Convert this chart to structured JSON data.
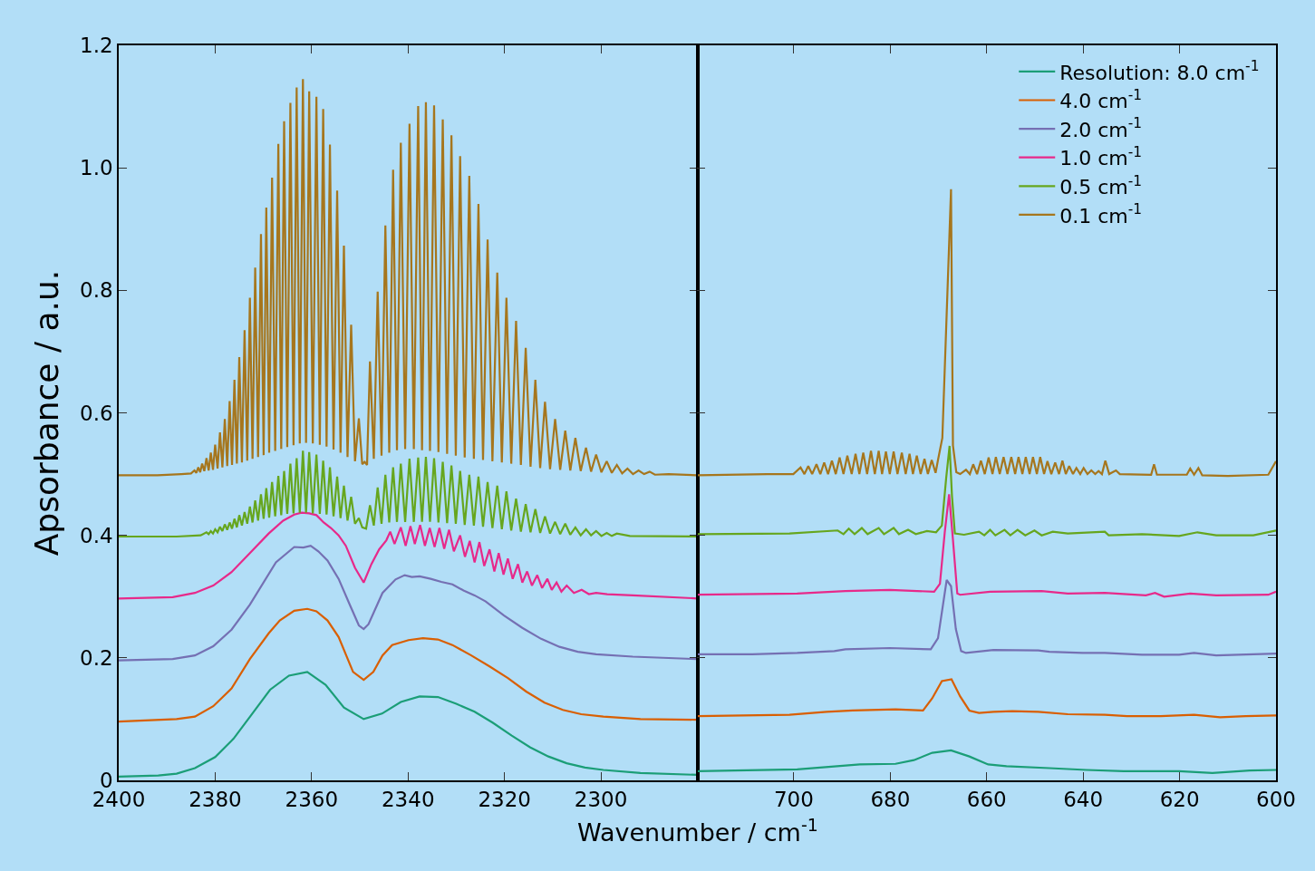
{
  "chart_data": [
    {
      "type": "line",
      "xlabel": "Wavenumber / cm$^{-1}$",
      "ylabel": "Apsorbance / a.u.",
      "xlim": [
        2400,
        2280
      ],
      "xticks": [
        2400,
        2380,
        2360,
        2340,
        2320,
        2300
      ],
      "ylim": [
        0,
        1.2
      ],
      "yticks": [
        0,
        0.2,
        0.4,
        0.6,
        0.8,
        {
          "value": 1.0,
          "label": "1.0"
        },
        1.2
      ],
      "grid": false,
      "legend": false,
      "line_style": "solid",
      "marker": "none",
      "series": [
        {
          "color": "#1b9e77",
          "x": [
            2400,
            2391.8,
            2388.0,
            2384.2,
            2380.0,
            2376.2,
            2372.3,
            2368.6,
            2364.7,
            2360.9,
            2357.1,
            2353.3,
            2349.2,
            2345.4,
            2341.5,
            2337.6,
            2333.8,
            2330.0,
            2326.2,
            2322.4,
            2318.5,
            2314.7,
            2310.9,
            2307.1,
            2303.3,
            2299.5,
            2291.8,
            2280
          ],
          "values": [
            0.006,
            0.008,
            0.011,
            0.02,
            0.038,
            0.068,
            0.109,
            0.148,
            0.171,
            0.177,
            0.156,
            0.119,
            0.1,
            0.109,
            0.128,
            0.137,
            0.136,
            0.125,
            0.112,
            0.094,
            0.073,
            0.054,
            0.039,
            0.028,
            0.021,
            0.017,
            0.012,
            0.009
          ]
        },
        {
          "color": "#d95f02",
          "x": [
            2400,
            2388.0,
            2384.2,
            2380.4,
            2376.6,
            2372.8,
            2368.9,
            2366.6,
            2363.6,
            2360.9,
            2359.0,
            2356.7,
            2354.4,
            2351.4,
            2349.2,
            2347.2,
            2345.3,
            2343.3,
            2339.9,
            2336.9,
            2333.8,
            2330.8,
            2326.9,
            2323.1,
            2319.3,
            2315.5,
            2311.7,
            2307.9,
            2304.1,
            2299.5,
            2291.8,
            2280
          ],
          "values": [
            0.096,
            0.1,
            0.104,
            0.121,
            0.15,
            0.198,
            0.24,
            0.261,
            0.277,
            0.28,
            0.276,
            0.261,
            0.234,
            0.177,
            0.164,
            0.177,
            0.204,
            0.221,
            0.229,
            0.232,
            0.23,
            0.221,
            0.204,
            0.186,
            0.167,
            0.145,
            0.127,
            0.115,
            0.108,
            0.104,
            0.1,
            0.099
          ]
        },
        {
          "color": "#7570b3",
          "x": [
            2400,
            2388.8,
            2384.2,
            2380.4,
            2376.6,
            2372.8,
            2367.4,
            2363.6,
            2361.7,
            2360.2,
            2358.6,
            2356.7,
            2354.4,
            2352.1,
            2350.2,
            2349.2,
            2348.2,
            2345.3,
            2342.6,
            2340.7,
            2339.2,
            2337.6,
            2335.3,
            2333.1,
            2330.8,
            2328.5,
            2326.2,
            2323.9,
            2320.1,
            2316.3,
            2312.4,
            2308.6,
            2304.8,
            2301.0,
            2293.4,
            2280
          ],
          "values": [
            0.196,
            0.198,
            0.204,
            0.219,
            0.246,
            0.287,
            0.356,
            0.381,
            0.38,
            0.383,
            0.374,
            0.359,
            0.329,
            0.287,
            0.253,
            0.247,
            0.255,
            0.306,
            0.328,
            0.335,
            0.332,
            0.333,
            0.329,
            0.324,
            0.32,
            0.31,
            0.302,
            0.292,
            0.269,
            0.249,
            0.231,
            0.218,
            0.21,
            0.206,
            0.202,
            0.198
          ]
        },
        {
          "color": "#e7298a",
          "x": [
            2400,
            2388.8,
            2384.2,
            2380.4,
            2376.6,
            2372.8,
            2368.9,
            2365.9,
            2363.6,
            2362.1,
            2360.5,
            2359.0,
            2357.5,
            2356.0,
            2354.4,
            2352.9,
            2351.0,
            2349.2,
            2347.6,
            2346.0,
            2344.5,
            2343.7,
            2342.8,
            2341.5,
            2340.5,
            2339.5,
            2338.6,
            2337.5,
            2336.5,
            2335.5,
            2334.5,
            2333.5,
            2332.5,
            2331.5,
            2330.5,
            2329.2,
            2328.2,
            2327.2,
            2326.2,
            2325.2,
            2324.2,
            2323.1,
            2322.1,
            2321.2,
            2320.2,
            2319.3,
            2318.3,
            2317.2,
            2316.3,
            2315.3,
            2314.3,
            2313.2,
            2312.2,
            2311.1,
            2310.2,
            2309.2,
            2308.2,
            2307.1,
            2305.6,
            2304.0,
            2302.5,
            2301.0,
            2298.7,
            2293.4,
            2280
          ],
          "values": [
            0.297,
            0.299,
            0.306,
            0.318,
            0.34,
            0.371,
            0.403,
            0.424,
            0.434,
            0.437,
            0.436,
            0.433,
            0.421,
            0.412,
            0.4,
            0.383,
            0.347,
            0.323,
            0.353,
            0.377,
            0.392,
            0.406,
            0.386,
            0.413,
            0.383,
            0.415,
            0.386,
            0.417,
            0.383,
            0.412,
            0.381,
            0.412,
            0.378,
            0.409,
            0.374,
            0.4,
            0.365,
            0.391,
            0.356,
            0.389,
            0.35,
            0.377,
            0.341,
            0.371,
            0.336,
            0.362,
            0.329,
            0.353,
            0.323,
            0.341,
            0.318,
            0.335,
            0.314,
            0.329,
            0.311,
            0.323,
            0.308,
            0.318,
            0.306,
            0.311,
            0.304,
            0.306,
            0.304,
            0.302,
            0.297
          ]
        },
        {
          "color": "#66a61e",
          "x": [
            2400,
            2388,
            2383,
            2381.8,
            2381.35,
            2380.9,
            2380.45,
            2380.0,
            2379.5,
            2379.0,
            2378.5,
            2378.0,
            2377.5,
            2377.0,
            2376.5,
            2376.0,
            2375.5,
            2375.0,
            2374.45,
            2373.9,
            2373.35,
            2372.8,
            2372.25,
            2371.7,
            2371.1,
            2370.5,
            2369.95,
            2369.4,
            2368.8,
            2368.2,
            2367.55,
            2366.9,
            2366.3,
            2365.7,
            2365.05,
            2364.4,
            2363.75,
            2363.1,
            2362.45,
            2361.8,
            2361.15,
            2360.5,
            2359.75,
            2359.0,
            2358.3,
            2357.6,
            2356.9,
            2356.2,
            2355.45,
            2354.7,
            2354.0,
            2353.3,
            2352.55,
            2351.8,
            2351.0,
            2350.2,
            2349.5,
            2348.7,
            2347.9,
            2347.1,
            2346.3,
            2345.5,
            2344.7,
            2343.9,
            2343.1,
            2342.3,
            2341.5,
            2340.6,
            2339.7,
            2338.8,
            2337.9,
            2337.1,
            2336.3,
            2335.45,
            2334.6,
            2333.7,
            2332.8,
            2331.9,
            2331.0,
            2330.1,
            2329.2,
            2328.25,
            2327.3,
            2326.35,
            2325.4,
            2324.45,
            2323.5,
            2322.5,
            2321.5,
            2320.55,
            2319.6,
            2318.6,
            2317.6,
            2316.6,
            2315.6,
            2314.6,
            2313.6,
            2312.6,
            2311.6,
            2310.55,
            2309.5,
            2308.45,
            2307.4,
            2306.35,
            2305.3,
            2304.2,
            2303.1,
            2302.05,
            2301.0,
            2299.9,
            2298.8,
            2297.75,
            2296.7,
            2294,
            2280
          ],
          "values": [
            0.398,
            0.398,
            0.4,
            0.405,
            0.402,
            0.407,
            0.403,
            0.41,
            0.405,
            0.414,
            0.407,
            0.418,
            0.409,
            0.421,
            0.411,
            0.427,
            0.413,
            0.433,
            0.416,
            0.438,
            0.419,
            0.447,
            0.421,
            0.457,
            0.424,
            0.467,
            0.427,
            0.477,
            0.429,
            0.487,
            0.431,
            0.497,
            0.433,
            0.505,
            0.435,
            0.517,
            0.436,
            0.526,
            0.437,
            0.538,
            0.437,
            0.536,
            0.436,
            0.532,
            0.435,
            0.522,
            0.434,
            0.511,
            0.431,
            0.496,
            0.428,
            0.481,
            0.424,
            0.463,
            0.419,
            0.428,
            0.413,
            0.411,
            0.449,
            0.416,
            0.478,
            0.419,
            0.499,
            0.421,
            0.511,
            0.422,
            0.517,
            0.422,
            0.525,
            0.422,
            0.527,
            0.422,
            0.528,
            0.422,
            0.526,
            0.421,
            0.52,
            0.42,
            0.514,
            0.419,
            0.505,
            0.417,
            0.499,
            0.416,
            0.496,
            0.414,
            0.487,
            0.412,
            0.481,
            0.41,
            0.472,
            0.408,
            0.46,
            0.406,
            0.451,
            0.405,
            0.443,
            0.404,
            0.431,
            0.403,
            0.422,
            0.402,
            0.419,
            0.401,
            0.413,
            0.4,
            0.41,
            0.4,
            0.407,
            0.399,
            0.404,
            0.399,
            0.403,
            0.399,
            0.398
          ]
        },
        {
          "color": "#a6761d",
          "x": [
            2400,
            2392,
            2387,
            2385,
            2384.3,
            2383.9,
            2383.5,
            2383.1,
            2382.7,
            2382.25,
            2381.8,
            2381.35,
            2380.9,
            2380.45,
            2380.0,
            2379.5,
            2379.0,
            2378.5,
            2378.0,
            2377.5,
            2377.0,
            2376.5,
            2376.0,
            2375.5,
            2375.0,
            2374.45,
            2373.9,
            2373.35,
            2372.8,
            2372.25,
            2371.7,
            2371.1,
            2370.5,
            2369.95,
            2369.4,
            2368.8,
            2368.2,
            2367.55,
            2366.9,
            2366.3,
            2365.7,
            2365.05,
            2364.4,
            2363.75,
            2363.1,
            2362.45,
            2361.8,
            2361.15,
            2360.5,
            2359.75,
            2359.0,
            2358.3,
            2357.6,
            2356.9,
            2356.2,
            2355.45,
            2354.7,
            2354.0,
            2353.3,
            2352.55,
            2351.8,
            2351.0,
            2350.2,
            2349.5,
            2349.0,
            2348.5,
            2347.9,
            2347.1,
            2346.3,
            2345.5,
            2344.7,
            2343.9,
            2343.1,
            2342.3,
            2341.5,
            2340.6,
            2339.7,
            2338.8,
            2337.9,
            2337.1,
            2336.3,
            2335.45,
            2334.6,
            2333.7,
            2332.8,
            2331.9,
            2331.0,
            2330.1,
            2329.2,
            2328.25,
            2327.3,
            2326.35,
            2325.4,
            2324.45,
            2323.5,
            2322.5,
            2321.5,
            2320.55,
            2319.6,
            2318.6,
            2317.6,
            2316.6,
            2315.6,
            2314.6,
            2313.6,
            2312.6,
            2311.6,
            2310.55,
            2309.5,
            2308.45,
            2307.4,
            2306.35,
            2305.3,
            2304.2,
            2303.1,
            2302.05,
            2301.0,
            2299.9,
            2298.8,
            2297.75,
            2296.7,
            2295.6,
            2294.5,
            2293.35,
            2292.2,
            2291.05,
            2289.9,
            2288.8,
            2286,
            2280
          ],
          "values": [
            0.498,
            0.498,
            0.5,
            0.501,
            0.506,
            0.502,
            0.511,
            0.503,
            0.517,
            0.505,
            0.526,
            0.506,
            0.535,
            0.507,
            0.548,
            0.509,
            0.568,
            0.511,
            0.59,
            0.513,
            0.619,
            0.515,
            0.654,
            0.517,
            0.691,
            0.519,
            0.735,
            0.522,
            0.788,
            0.525,
            0.837,
            0.528,
            0.892,
            0.531,
            0.935,
            0.535,
            0.984,
            0.538,
            1.039,
            0.541,
            1.076,
            0.544,
            1.106,
            0.547,
            1.131,
            0.55,
            1.145,
            0.551,
            1.125,
            0.55,
            1.116,
            0.548,
            1.096,
            0.545,
            1.038,
            0.54,
            0.963,
            0.535,
            0.873,
            0.528,
            0.744,
            0.521,
            0.591,
            0.516,
            0.52,
            0.515,
            0.684,
            0.525,
            0.798,
            0.53,
            0.906,
            0.535,
            0.997,
            0.539,
            1.041,
            0.541,
            1.072,
            0.541,
            1.101,
            0.539,
            1.107,
            0.538,
            1.102,
            0.536,
            1.079,
            0.533,
            1.053,
            0.53,
            1.019,
            0.527,
            0.987,
            0.525,
            0.941,
            0.523,
            0.883,
            0.521,
            0.829,
            0.519,
            0.788,
            0.517,
            0.75,
            0.515,
            0.706,
            0.512,
            0.654,
            0.51,
            0.618,
            0.508,
            0.59,
            0.507,
            0.571,
            0.506,
            0.559,
            0.505,
            0.543,
            0.504,
            0.532,
            0.503,
            0.521,
            0.502,
            0.515,
            0.501,
            0.509,
            0.5,
            0.506,
            0.5,
            0.504,
            0.499,
            0.5,
            0.498
          ]
        }
      ]
    },
    {
      "type": "line",
      "xlim": [
        720,
        600
      ],
      "xticks": [
        700,
        680,
        660,
        640,
        620,
        600
      ],
      "ylim": [
        0,
        1.2
      ],
      "yticks": [
        {
          "value": 0,
          "label": null
        },
        {
          "value": 0.2,
          "label": null
        },
        {
          "value": 0.4,
          "label": null
        },
        {
          "value": 0.6,
          "label": null
        },
        {
          "value": 0.8,
          "label": null
        },
        {
          "value": 1.0,
          "label": null
        },
        {
          "value": 1.2,
          "label": null
        }
      ],
      "tick_labels": "x",
      "grid": false,
      "legend": "top right",
      "line_style": "solid",
      "marker": "none",
      "series": [
        {
          "name": "Resolution: 8.0 cm$^{-1}$",
          "color": "#1b9e77",
          "x": [
            720,
            699.3,
            686.3,
            678.9,
            675.1,
            671.3,
            667.4,
            663.6,
            659.7,
            655.9,
            647.0,
            639.3,
            631.6,
            620.1,
            613.2,
            605.5,
            600
          ],
          "values": [
            0.015,
            0.018,
            0.026,
            0.027,
            0.033,
            0.045,
            0.049,
            0.039,
            0.026,
            0.023,
            0.02,
            0.017,
            0.015,
            0.015,
            0.012,
            0.016,
            0.017
          ]
        },
        {
          "name": "4.0 cm$^{-1}$",
          "color": "#d95f02",
          "x": [
            720,
            700.9,
            693.2,
            687.8,
            678.9,
            673.2,
            671.3,
            669.3,
            667.3,
            665.5,
            663.6,
            661.6,
            658.6,
            654.7,
            649.3,
            643.2,
            635.5,
            630.9,
            623.9,
            617.0,
            611.6,
            606.3,
            600
          ],
          "values": [
            0.105,
            0.107,
            0.112,
            0.114,
            0.116,
            0.114,
            0.134,
            0.162,
            0.165,
            0.137,
            0.114,
            0.11,
            0.112,
            0.113,
            0.112,
            0.108,
            0.107,
            0.105,
            0.105,
            0.107,
            0.103,
            0.105,
            0.106
          ]
        },
        {
          "name": "2.0 cm$^{-1}$",
          "color": "#7570b3",
          "x": [
            720,
            708.6,
            699.3,
            691.6,
            689.3,
            680.1,
            671.6,
            670.1,
            668.3,
            667.4,
            666.4,
            665.3,
            664.3,
            658.6,
            649.3,
            647.0,
            640.1,
            635.5,
            627.8,
            620.1,
            617.0,
            612.4,
            600
          ],
          "values": [
            0.206,
            0.206,
            0.208,
            0.211,
            0.214,
            0.216,
            0.214,
            0.232,
            0.327,
            0.317,
            0.247,
            0.211,
            0.208,
            0.213,
            0.212,
            0.21,
            0.208,
            0.208,
            0.205,
            0.205,
            0.208,
            0.204,
            0.207
          ]
        },
        {
          "name": "1.0 cm$^{-1}$",
          "color": "#e7298a",
          "x": [
            720,
            699.3,
            689.3,
            680.1,
            670.9,
            669.7,
            668.7,
            667.8,
            667.0,
            666.1,
            665.5,
            659.3,
            648.6,
            643.2,
            635.5,
            627.0,
            625.1,
            623.2,
            617.8,
            612.4,
            601.6,
            600
          ],
          "values": [
            0.303,
            0.305,
            0.309,
            0.311,
            0.308,
            0.321,
            0.405,
            0.467,
            0.393,
            0.305,
            0.303,
            0.308,
            0.309,
            0.305,
            0.306,
            0.302,
            0.306,
            0.3,
            0.305,
            0.302,
            0.303,
            0.308
          ]
        },
        {
          "name": "0.5 cm$^{-1}$",
          "color": "#66a61e",
          "x": [
            720,
            700.9,
            690.9,
            689.7,
            688.6,
            687.4,
            685.9,
            684.7,
            682.4,
            681.3,
            679.3,
            678.2,
            676.3,
            674.7,
            672.4,
            670.5,
            669.3,
            668.4,
            667.7,
            667.2,
            666.6,
            664.7,
            661.6,
            660.5,
            659.3,
            658.2,
            656.3,
            655.1,
            653.6,
            652.0,
            650.1,
            648.6,
            646.3,
            643.2,
            635.5,
            634.7,
            627.8,
            620.1,
            616.3,
            612.4,
            604.7,
            600
          ],
          "values": [
            0.402,
            0.403,
            0.408,
            0.402,
            0.411,
            0.402,
            0.412,
            0.402,
            0.412,
            0.402,
            0.412,
            0.402,
            0.409,
            0.402,
            0.407,
            0.405,
            0.416,
            0.494,
            0.546,
            0.464,
            0.403,
            0.401,
            0.406,
            0.4,
            0.409,
            0.4,
            0.409,
            0.4,
            0.409,
            0.4,
            0.408,
            0.4,
            0.406,
            0.403,
            0.406,
            0.4,
            0.402,
            0.399,
            0.405,
            0.4,
            0.4,
            0.408
          ]
        },
        {
          "name": "0.1 cm$^{-1}$",
          "color": "#a6761d",
          "x": [
            720,
            705.5,
            700.1,
            698.6,
            697.8,
            697.0,
            696.2,
            695.3,
            694.5,
            693.7,
            692.9,
            692.1,
            691.3,
            690.5,
            689.7,
            688.9,
            688.0,
            687.2,
            686.4,
            685.6,
            684.8,
            684.0,
            683.2,
            682.4,
            681.7,
            680.9,
            680.1,
            679.3,
            678.5,
            677.6,
            676.8,
            676.0,
            675.3,
            674.5,
            673.7,
            672.9,
            672.2,
            671.4,
            670.6,
            670.1,
            669.2,
            667.4,
            667.0,
            666.3,
            665.5,
            664.3,
            663.5,
            662.8,
            662.0,
            661.2,
            660.4,
            659.6,
            658.8,
            658.1,
            657.3,
            656.5,
            655.7,
            654.9,
            654.1,
            653.4,
            652.6,
            651.9,
            651.1,
            650.4,
            649.6,
            648.9,
            648.1,
            647.4,
            646.6,
            645.8,
            645.0,
            644.3,
            643.6,
            642.9,
            642.1,
            641.4,
            640.6,
            639.9,
            639.1,
            638.3,
            637.5,
            636.8,
            636.1,
            635.4,
            634.6,
            633.2,
            632.4,
            625.9,
            625.3,
            624.7,
            618.5,
            617.8,
            617.0,
            616.1,
            615.3,
            610,
            601.6,
            600
          ],
          "values": [
            0.498,
            0.5,
            0.5,
            0.511,
            0.5,
            0.513,
            0.5,
            0.516,
            0.5,
            0.519,
            0.5,
            0.522,
            0.5,
            0.527,
            0.5,
            0.53,
            0.5,
            0.533,
            0.5,
            0.535,
            0.5,
            0.538,
            0.5,
            0.538,
            0.5,
            0.537,
            0.5,
            0.537,
            0.5,
            0.535,
            0.5,
            0.533,
            0.5,
            0.53,
            0.5,
            0.525,
            0.5,
            0.523,
            0.502,
            0.523,
            0.559,
            0.965,
            0.547,
            0.503,
            0.5,
            0.507,
            0.5,
            0.516,
            0.5,
            0.522,
            0.5,
            0.527,
            0.5,
            0.528,
            0.5,
            0.528,
            0.5,
            0.528,
            0.5,
            0.528,
            0.5,
            0.528,
            0.5,
            0.528,
            0.5,
            0.528,
            0.5,
            0.521,
            0.5,
            0.519,
            0.5,
            0.522,
            0.5,
            0.513,
            0.5,
            0.51,
            0.5,
            0.51,
            0.5,
            0.506,
            0.5,
            0.505,
            0.5,
            0.522,
            0.5,
            0.506,
            0.5,
            0.499,
            0.516,
            0.499,
            0.499,
            0.509,
            0.499,
            0.51,
            0.498,
            0.497,
            0.499,
            0.521
          ]
        }
      ]
    }
  ]
}
